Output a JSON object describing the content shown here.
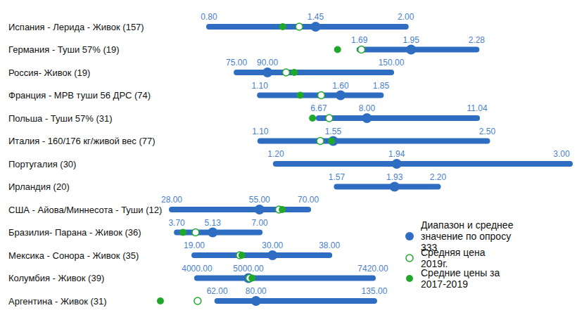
{
  "chart_data": {
    "type": "range",
    "categories": [
      "Испания - Лерида - Живок (157)",
      "Германия - Туши 57% (19)",
      "Россия- Живок (19)",
      "Франция - МРВ туши 56 ДРС (74)",
      "Польша - Туши 57% (31)",
      "Италия - 160/176 кг/живой вес (77)",
      "Португалия (30)",
      "Ирландия (20)",
      "США - Айова/Миннесота - Туши (12)",
      "Бразилия- Парана - Живок (36)",
      "Мексика - Сонора - Живок (35)",
      "Колумбия - Живок (39)",
      "Аргентина - Живок (31)"
    ],
    "xlims": [
      [
        0.47,
        3.0
      ],
      [
        0.66,
        2.75
      ],
      [
        35.4,
        236.6
      ],
      [
        0.45,
        3.02
      ],
      [
        2.15,
        13.6
      ],
      [
        0.45,
        3.01
      ],
      [
        0.46,
        3.0
      ],
      [
        0.44,
        3.02
      ],
      [
        22.8,
        150.5
      ],
      [
        2.83,
        19.33
      ],
      [
        13.46,
        71.8
      ],
      [
        3180,
        11250
      ],
      [
        33,
        225.9
      ]
    ],
    "legend": "lower right",
    "series": [
      {
        "name": "Диапазон и среднее значение по опросу 333",
        "color": "#2e6dc2",
        "marker": "filled",
        "min": [
          0.8,
          1.69,
          75,
          1.1,
          6.67,
          1.1,
          1.2,
          1.57,
          28,
          3.7,
          19,
          4000,
          62
        ],
        "mean": [
          1.45,
          1.95,
          90,
          1.6,
          8,
          1.55,
          1.94,
          1.93,
          55,
          5.13,
          30,
          5000,
          80
        ],
        "max": [
          2,
          2.28,
          150,
          1.85,
          11.04,
          2.5,
          3,
          2.2,
          70,
          7,
          38,
          7420,
          135
        ],
        "min_labels": [
          "0.80",
          "1.69",
          "75.00",
          "1.10",
          "6.67",
          "1.10",
          "1.20",
          "1.57",
          "28.00",
          "3.70",
          "19.00",
          "4000.00",
          "62.00"
        ],
        "mean_labels": [
          "1.45",
          "1.95",
          "90.00",
          "1.60",
          "8.00",
          "1.55",
          "1.94",
          "1.93",
          "55.00",
          "5.13",
          "30.00",
          "5000.00",
          "80.00"
        ],
        "max_labels": [
          "2.00",
          "2.28",
          "150.00",
          "1.85",
          "11.04",
          "2.50",
          "3.00",
          "2.20",
          "70.00",
          "7.00",
          "38.00",
          "7420.00",
          "135.00"
        ]
      },
      {
        "name": "Средняя цена 2019г.",
        "color": "#1fa82a",
        "marker": "open",
        "values": [
          1.35,
          1.7,
          99,
          1.48,
          6.96,
          1.47,
          null,
          null,
          61,
          4.45,
          25.4,
          5020,
          52.9
        ]
      },
      {
        "name": "Средние цены за 2017-2019",
        "color": "#1fa82a",
        "marker": "filled",
        "values": [
          1.25,
          1.58,
          103,
          1.35,
          6.5,
          1.54,
          null,
          null,
          62,
          3.95,
          25.7,
          5070,
          35.6
        ]
      }
    ]
  }
}
